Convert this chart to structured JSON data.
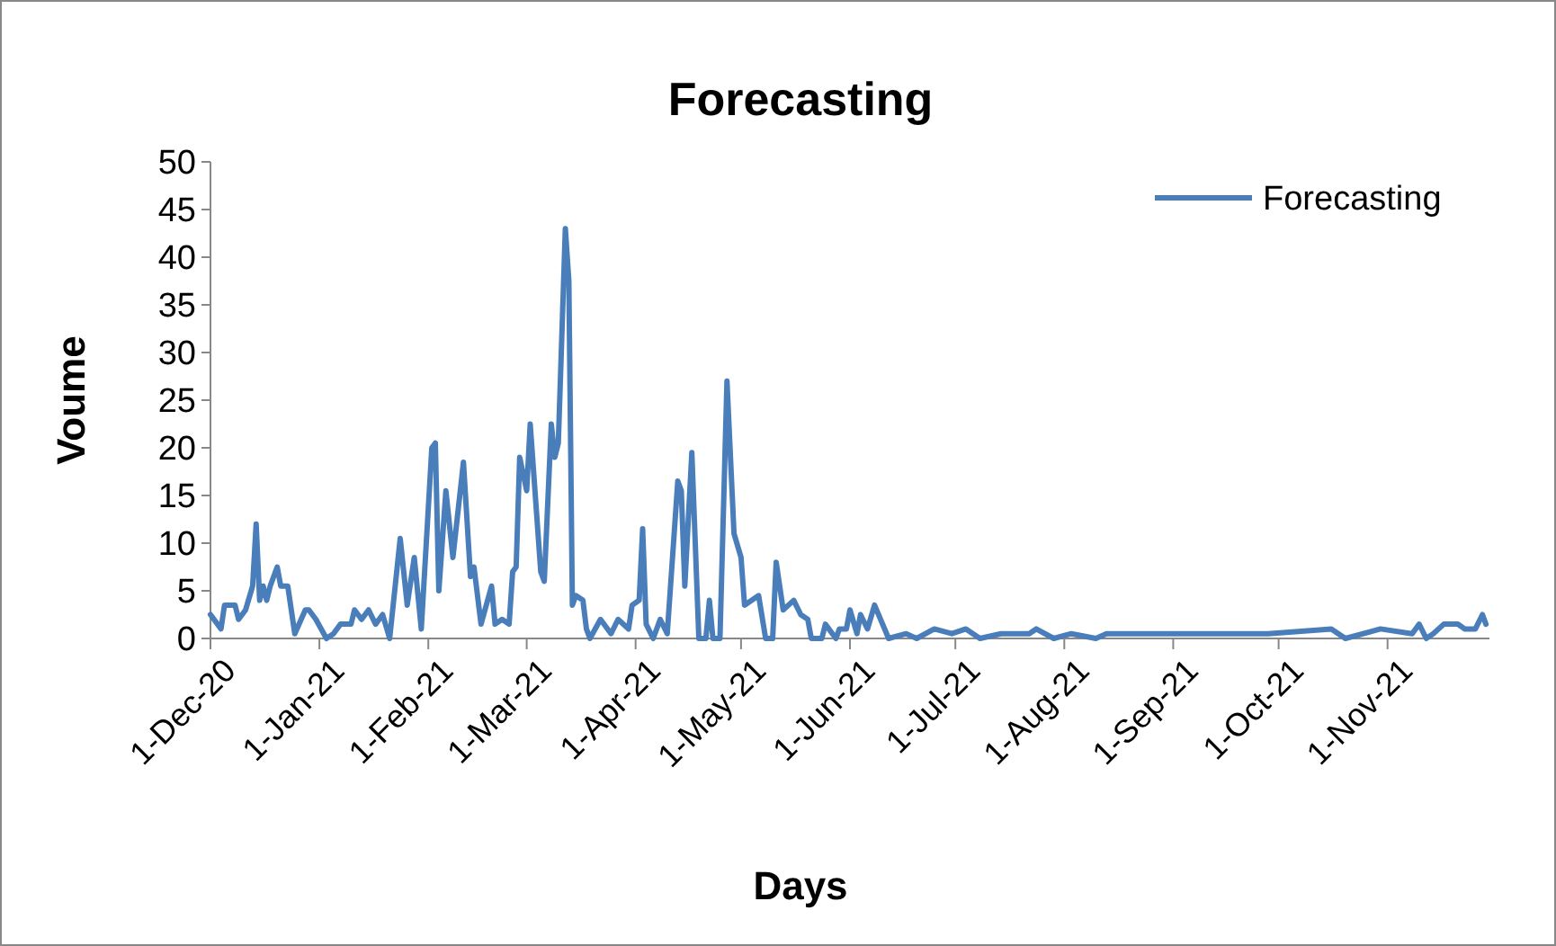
{
  "chart_data": {
    "type": "line",
    "title": "Forecasting",
    "xlabel": "Days",
    "ylabel": "Voume",
    "x": [
      "2020-12-01",
      "2020-12-04",
      "2020-12-05",
      "2020-12-08",
      "2020-12-09",
      "2020-12-11",
      "2020-12-13",
      "2020-12-14",
      "2020-12-15",
      "2020-12-16",
      "2020-12-17",
      "2020-12-18",
      "2020-12-20",
      "2020-12-21",
      "2020-12-23",
      "2020-12-25",
      "2020-12-28",
      "2020-12-29",
      "2020-12-31",
      "2021-01-03",
      "2021-01-05",
      "2021-01-07",
      "2021-01-10",
      "2021-01-11",
      "2021-01-13",
      "2021-01-15",
      "2021-01-17",
      "2021-01-19",
      "2021-01-21",
      "2021-01-24",
      "2021-01-26",
      "2021-01-28",
      "2021-01-30",
      "2021-02-02",
      "2021-02-03",
      "2021-02-04",
      "2021-02-06",
      "2021-02-08",
      "2021-02-11",
      "2021-02-13",
      "2021-02-14",
      "2021-02-16",
      "2021-02-19",
      "2021-02-20",
      "2021-02-22",
      "2021-02-24",
      "2021-02-25",
      "2021-02-26",
      "2021-02-27",
      "2021-03-01",
      "2021-03-02",
      "2021-03-05",
      "2021-03-06",
      "2021-03-08",
      "2021-03-09",
      "2021-03-10",
      "2021-03-12",
      "2021-03-13",
      "2021-03-14",
      "2021-03-15",
      "2021-03-17",
      "2021-03-18",
      "2021-03-19",
      "2021-03-22",
      "2021-03-25",
      "2021-03-27",
      "2021-03-30",
      "2021-03-31",
      "2021-04-02",
      "2021-04-03",
      "2021-04-04",
      "2021-04-06",
      "2021-04-08",
      "2021-04-10",
      "2021-04-13",
      "2021-04-14",
      "2021-04-15",
      "2021-04-17",
      "2021-04-19",
      "2021-04-21",
      "2021-04-22",
      "2021-04-23",
      "2021-04-25",
      "2021-04-27",
      "2021-04-29",
      "2021-05-01",
      "2021-05-02",
      "2021-05-06",
      "2021-05-08",
      "2021-05-10",
      "2021-05-11",
      "2021-05-13",
      "2021-05-16",
      "2021-05-18",
      "2021-05-20",
      "2021-05-21",
      "2021-05-24",
      "2021-05-25",
      "2021-05-28",
      "2021-05-29",
      "2021-05-31",
      "2021-06-01",
      "2021-06-03",
      "2021-06-04",
      "2021-06-06",
      "2021-06-08",
      "2021-06-12",
      "2021-06-17",
      "2021-06-20",
      "2021-06-25",
      "2021-06-30",
      "2021-07-04",
      "2021-07-08",
      "2021-07-14",
      "2021-07-22",
      "2021-07-24",
      "2021-07-29",
      "2021-08-03",
      "2021-08-10",
      "2021-08-13",
      "2021-08-25",
      "2021-09-11",
      "2021-09-28",
      "2021-10-16",
      "2021-10-20",
      "2021-10-30",
      "2021-11-08",
      "2021-11-10",
      "2021-11-12",
      "2021-11-14",
      "2021-11-17",
      "2021-11-19",
      "2021-11-21",
      "2021-11-23",
      "2021-11-26",
      "2021-11-28",
      "2021-11-29"
    ],
    "series": [
      {
        "name": "Forecasting",
        "color": "#4a7ebb",
        "values": [
          2.5,
          1,
          3.5,
          3.5,
          2,
          3,
          5.5,
          12,
          4,
          5.5,
          4,
          5.5,
          7.5,
          5.5,
          5.5,
          0.5,
          3,
          3,
          2,
          0,
          0.5,
          1.5,
          1.5,
          3,
          2,
          3,
          1.5,
          2.5,
          0,
          10.5,
          3.5,
          8.5,
          1,
          20,
          20.5,
          5,
          15.5,
          8.5,
          18.5,
          6.5,
          7.5,
          1.5,
          5.5,
          1.5,
          2,
          1.5,
          7,
          7.5,
          19,
          15.5,
          22.5,
          7,
          6,
          22.5,
          19,
          20.5,
          43,
          37.5,
          3.5,
          4.5,
          4,
          1,
          0,
          2,
          0.5,
          2,
          1,
          3.5,
          4,
          11.5,
          1.5,
          0,
          2,
          0.5,
          16.5,
          15.5,
          5.5,
          19.5,
          0,
          0,
          4,
          0,
          0,
          27,
          11,
          8.5,
          3.5,
          4.5,
          0,
          0,
          8,
          3,
          4,
          2.5,
          2,
          0,
          0,
          1.5,
          0,
          1,
          1,
          3,
          0.5,
          2.5,
          1,
          3.5,
          0,
          0.5,
          0,
          1,
          0.5,
          1,
          0,
          0.5,
          0.5,
          1,
          0,
          0.5,
          0,
          0.5,
          0.5,
          0.5,
          0.5,
          1,
          0,
          1,
          0.5,
          1.5,
          0,
          0.5,
          1.5,
          1.5,
          1.5,
          1,
          1,
          2.5,
          1.5
        ]
      }
    ],
    "xlim": [
      "2020-12-01",
      "2021-11-30"
    ],
    "xticks": [
      {
        "value": "2020-12-01",
        "label": "1-Dec-20"
      },
      {
        "value": "2021-01-01",
        "label": "1-Jan-21"
      },
      {
        "value": "2021-02-01",
        "label": "1-Feb-21"
      },
      {
        "value": "2021-03-01",
        "label": "1-Mar-21"
      },
      {
        "value": "2021-04-01",
        "label": "1-Apr-21"
      },
      {
        "value": "2021-05-01",
        "label": "1-May-21"
      },
      {
        "value": "2021-06-01",
        "label": "1-Jun-21"
      },
      {
        "value": "2021-07-01",
        "label": "1-Jul-21"
      },
      {
        "value": "2021-08-01",
        "label": "1-Aug-21"
      },
      {
        "value": "2021-09-01",
        "label": "1-Sep-21"
      },
      {
        "value": "2021-10-01",
        "label": "1-Oct-21"
      },
      {
        "value": "2021-11-01",
        "label": "1-Nov-21"
      }
    ],
    "ylim": [
      0,
      50
    ],
    "yticks": [
      0,
      5,
      10,
      15,
      20,
      25,
      30,
      35,
      40,
      45,
      50
    ],
    "grid": false,
    "legend": "top right",
    "marker": "none",
    "line_style": "solid"
  }
}
